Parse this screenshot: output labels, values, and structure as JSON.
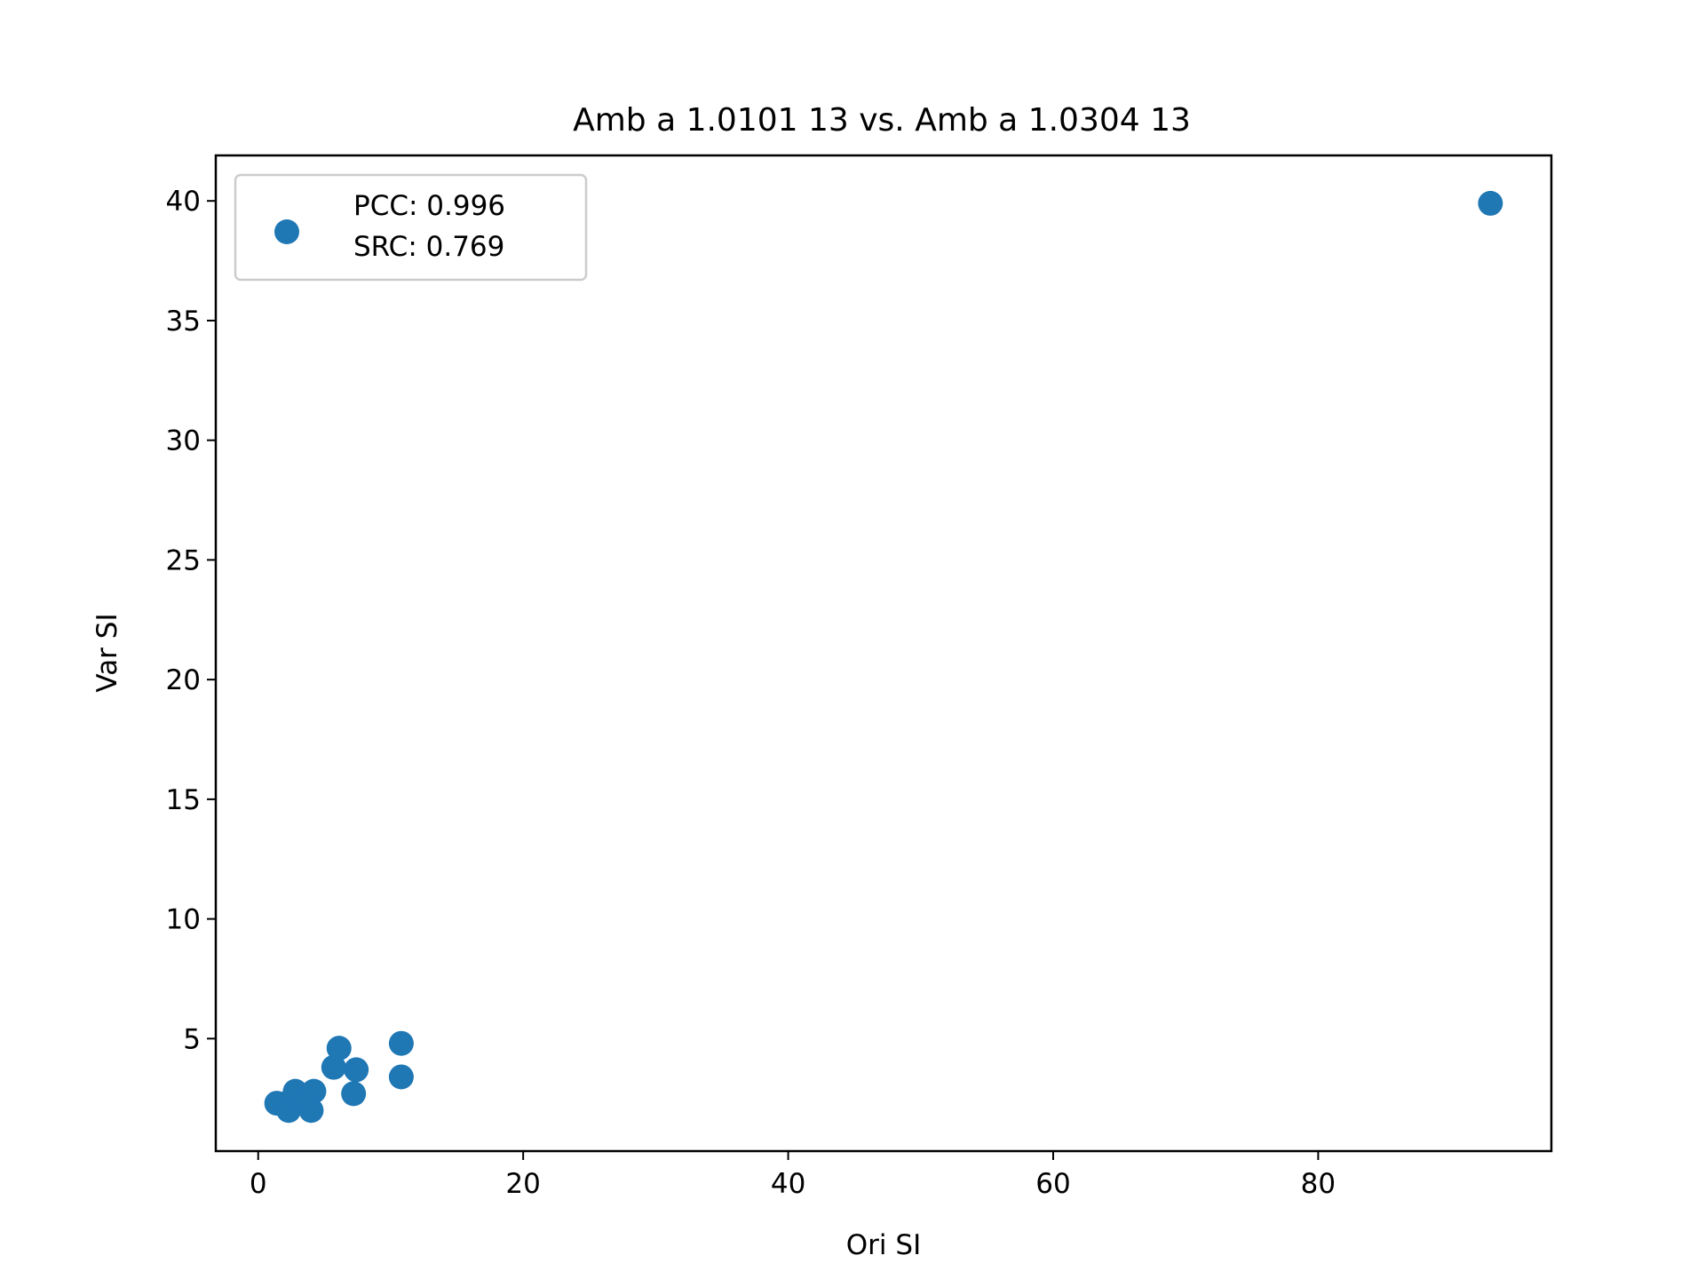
{
  "chart_data": {
    "type": "scatter",
    "title": "Amb a 1.0101 13 vs. Amb a 1.0304 13",
    "xlabel": "Ori SI",
    "ylabel": "Var SI",
    "xlim": [
      -3.2,
      97.6
    ],
    "ylim": [
      0.3,
      41.9
    ],
    "xticks": [
      0,
      20,
      40,
      60,
      80
    ],
    "yticks": [
      5,
      10,
      15,
      20,
      25,
      30,
      35,
      40
    ],
    "grid": false,
    "legend": {
      "placement": "top-left",
      "lines": [
        "PCC: 0.996",
        "SRC: 0.769"
      ]
    },
    "marker_color": "#1f77b4",
    "series": [
      {
        "points": [
          {
            "x": 1.4,
            "y": 2.3
          },
          {
            "x": 2.3,
            "y": 2.0
          },
          {
            "x": 2.6,
            "y": 2.5
          },
          {
            "x": 2.8,
            "y": 2.8
          },
          {
            "x": 3.5,
            "y": 2.4
          },
          {
            "x": 4.0,
            "y": 2.0
          },
          {
            "x": 4.2,
            "y": 2.8
          },
          {
            "x": 5.7,
            "y": 3.8
          },
          {
            "x": 6.1,
            "y": 4.6
          },
          {
            "x": 7.2,
            "y": 2.7
          },
          {
            "x": 7.4,
            "y": 3.7
          },
          {
            "x": 10.8,
            "y": 4.8
          },
          {
            "x": 10.8,
            "y": 3.4
          },
          {
            "x": 93.0,
            "y": 39.9
          }
        ]
      }
    ]
  }
}
